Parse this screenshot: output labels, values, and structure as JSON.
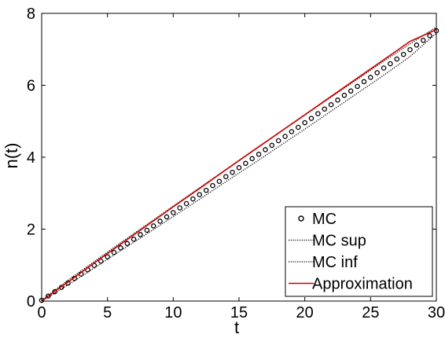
{
  "chart_data": {
    "type": "line",
    "xlabel": "t",
    "ylabel": "n(t)",
    "xlim": [
      0,
      30
    ],
    "ylim": [
      0,
      8
    ],
    "xticks": [
      "0",
      "5",
      "10",
      "15",
      "20",
      "25",
      "30"
    ],
    "yticks": [
      "0",
      "2",
      "4",
      "6",
      "8"
    ],
    "grid": false,
    "legend_position": "bottom-right",
    "series": [
      {
        "name": "MC",
        "style": "markers",
        "marker": "open-circle",
        "color": "#000000",
        "x": [
          0.0,
          0.5,
          1.0,
          1.5,
          2.0,
          2.5,
          3.0,
          3.5,
          4.0,
          4.5,
          5.0,
          5.5,
          6.0,
          6.5,
          7.0,
          7.5,
          8.0,
          8.5,
          9.0,
          9.5,
          10.0,
          10.5,
          11.0,
          11.5,
          12.0,
          12.5,
          13.0,
          13.5,
          14.0,
          14.5,
          15.0,
          15.5,
          16.0,
          16.5,
          17.0,
          17.5,
          18.0,
          18.5,
          19.0,
          19.5,
          20.0,
          20.5,
          21.0,
          21.5,
          22.0,
          22.5,
          23.0,
          23.5,
          24.0,
          24.5,
          25.0,
          25.5,
          26.0,
          26.5,
          27.0,
          27.5,
          28.0,
          28.5,
          29.0,
          29.5,
          30.0
        ],
        "y": [
          0.02,
          0.14,
          0.26,
          0.38,
          0.5,
          0.63,
          0.75,
          0.87,
          0.99,
          1.11,
          1.23,
          1.35,
          1.48,
          1.6,
          1.72,
          1.85,
          1.97,
          2.09,
          2.22,
          2.34,
          2.46,
          2.59,
          2.71,
          2.84,
          2.96,
          3.08,
          3.21,
          3.33,
          3.46,
          3.58,
          3.71,
          3.83,
          3.96,
          4.08,
          4.21,
          4.33,
          4.46,
          4.58,
          4.71,
          4.83,
          4.96,
          5.08,
          5.21,
          5.34,
          5.46,
          5.59,
          5.72,
          5.84,
          5.97,
          6.1,
          6.22,
          6.35,
          6.48,
          6.6,
          6.73,
          6.86,
          6.99,
          7.12,
          7.25,
          7.38,
          7.52
        ]
      },
      {
        "name": "MC sup",
        "style": "dotted",
        "color": "#000000",
        "x": [
          0,
          2,
          4,
          6,
          8,
          10,
          12,
          14,
          16,
          18,
          20,
          22,
          24,
          26,
          28,
          30
        ],
        "y": [
          0.02,
          0.58,
          1.1,
          1.62,
          2.13,
          2.64,
          3.15,
          3.66,
          4.17,
          4.67,
          5.17,
          5.67,
          6.17,
          6.67,
          7.15,
          7.62
        ]
      },
      {
        "name": "MC inf",
        "style": "dotted",
        "color": "#000000",
        "x": [
          0,
          2,
          4,
          6,
          8,
          10,
          12,
          14,
          16,
          18,
          20,
          22,
          24,
          26,
          28,
          30
        ],
        "y": [
          0.0,
          0.45,
          0.92,
          1.4,
          1.87,
          2.35,
          2.83,
          3.32,
          3.8,
          4.29,
          4.78,
          5.28,
          5.78,
          6.28,
          6.8,
          7.45
        ]
      },
      {
        "name": "Approximation",
        "style": "solid",
        "color": "#cc0000",
        "x": [
          0,
          1,
          2,
          4,
          6,
          8,
          10,
          12,
          14,
          16,
          18,
          20,
          22,
          24,
          26,
          28,
          30
        ],
        "y": [
          0.0,
          0.27,
          0.53,
          1.06,
          1.58,
          2.1,
          2.62,
          3.13,
          3.65,
          4.16,
          4.67,
          5.18,
          5.69,
          6.2,
          6.71,
          7.22,
          7.55
        ]
      }
    ]
  }
}
